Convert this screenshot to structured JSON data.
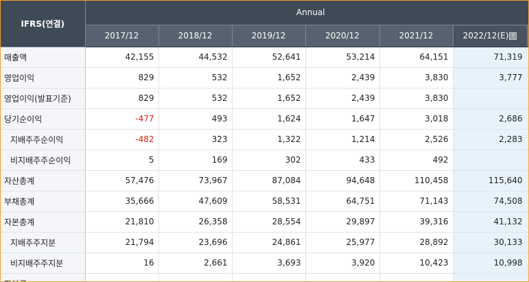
{
  "header": {
    "corner": "IFRS(연결)",
    "group": "Annual",
    "years": [
      "2017/12",
      "2018/12",
      "2019/12",
      "2020/12",
      "2021/12",
      "2022/12(E)"
    ],
    "est_icon": "?"
  },
  "rows": [
    {
      "label": "매출액",
      "sub": false,
      "values": [
        "42,155",
        "44,532",
        "52,641",
        "53,214",
        "64,151",
        "71,319"
      ]
    },
    {
      "label": "영업이익",
      "sub": false,
      "values": [
        "829",
        "532",
        "1,652",
        "2,439",
        "3,830",
        "3,777"
      ]
    },
    {
      "label": "영업이익(발표기준)",
      "sub": false,
      "values": [
        "829",
        "532",
        "1,652",
        "2,439",
        "3,830",
        ""
      ]
    },
    {
      "label": "당기순이익",
      "sub": false,
      "values": [
        "-477",
        "493",
        "1,624",
        "1,647",
        "3,018",
        "2,686"
      ]
    },
    {
      "label": "지배주주순이익",
      "sub": true,
      "values": [
        "-482",
        "323",
        "1,322",
        "1,214",
        "2,526",
        "2,283"
      ]
    },
    {
      "label": "비지배주주순이익",
      "sub": true,
      "values": [
        "5",
        "169",
        "302",
        "433",
        "492",
        ""
      ]
    },
    {
      "label": "자산총계",
      "sub": false,
      "values": [
        "57,476",
        "73,967",
        "87,084",
        "94,648",
        "110,458",
        "115,640"
      ]
    },
    {
      "label": "부채총계",
      "sub": false,
      "values": [
        "35,666",
        "47,609",
        "58,531",
        "64,751",
        "71,143",
        "74,508"
      ]
    },
    {
      "label": "자본총계",
      "sub": false,
      "values": [
        "21,810",
        "26,358",
        "28,554",
        "29,897",
        "39,316",
        "41,132"
      ]
    },
    {
      "label": "지배주주지분",
      "sub": true,
      "values": [
        "21,794",
        "23,696",
        "24,861",
        "25,977",
        "28,892",
        "30,133"
      ]
    },
    {
      "label": "비지배주주지분",
      "sub": true,
      "values": [
        "16",
        "2,661",
        "3,693",
        "3,920",
        "10,423",
        "10,998"
      ]
    },
    {
      "label": "자본금",
      "sub": false,
      "values": [
        "",
        "",
        "",
        "",
        "",
        ""
      ]
    }
  ],
  "colors": {
    "header_bg": "#3f4a57",
    "subheader_bg": "#56626f",
    "estimate_bg": "#e6f3fb",
    "negative": "#e02010",
    "frame_border": "#f0a030"
  }
}
